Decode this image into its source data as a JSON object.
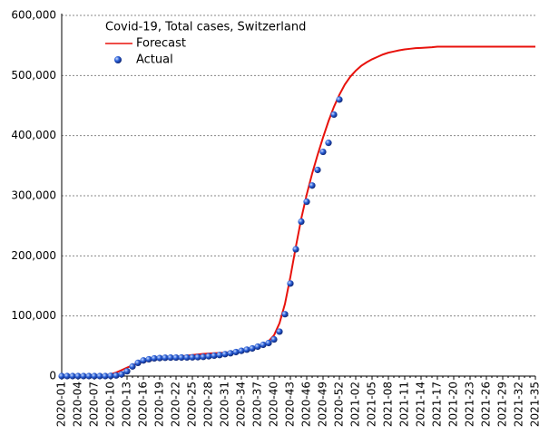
{
  "chart_data": {
    "type": "line",
    "title": "Covid-19, Total cases, Switzerland",
    "categories": [
      "2020-01",
      null,
      null,
      "2020-04",
      null,
      null,
      "2020-07",
      null,
      null,
      "2020-10",
      null,
      null,
      "2020-13",
      null,
      null,
      "2020-16",
      null,
      null,
      "2020-19",
      null,
      null,
      "2020-22",
      null,
      null,
      "2020-25",
      null,
      null,
      "2020-28",
      null,
      null,
      "2020-31",
      null,
      null,
      "2020-34",
      null,
      null,
      "2020-37",
      null,
      null,
      "2020-40",
      null,
      null,
      "2020-43",
      null,
      null,
      "2020-46",
      null,
      null,
      "2020-49",
      null,
      null,
      "2020-52",
      null,
      null,
      "2021-02",
      null,
      null,
      "2021-05",
      null,
      null,
      "2021-08",
      null,
      null,
      "2021-11",
      null,
      null,
      "2021-14",
      null,
      null,
      "2021-17",
      null,
      null,
      "2021-20",
      null,
      null,
      "2021-23",
      null,
      null,
      "2021-26",
      null,
      null,
      "2021-29",
      null,
      null,
      "2021-32",
      null,
      null,
      "2021-35"
    ],
    "series": [
      {
        "name": "Forecast",
        "color": "#e8120c",
        "style": "line",
        "values": [
          0,
          0,
          0,
          0,
          0,
          0,
          0,
          0,
          1000,
          3000,
          6000,
          10000,
          14000,
          18000,
          21000,
          24000,
          26000,
          27500,
          29000,
          30000,
          31000,
          32000,
          33000,
          34000,
          35000,
          36000,
          37000,
          37500,
          38000,
          38500,
          39000,
          40000,
          41000,
          42000,
          43500,
          45000,
          48000,
          52000,
          58000,
          68000,
          88000,
          120000,
          165000,
          215000,
          262000,
          302000,
          337000,
          368000,
          397000,
          424000,
          448000,
          468000,
          485000,
          498000,
          508000,
          516000,
          522000,
          527000,
          531000,
          535000,
          538000,
          540000,
          542000,
          543500,
          544500,
          545500,
          546000,
          546500,
          547000,
          548000,
          548000,
          548000,
          548000,
          548000,
          548000,
          548000,
          548000,
          548000,
          548000,
          548000,
          548000,
          548000,
          548000,
          548000,
          548000,
          548000,
          548000,
          548000
        ]
      },
      {
        "name": "Actual",
        "color": "#2050c8",
        "style": "marker",
        "values": [
          0,
          0,
          0,
          0,
          0,
          0,
          0,
          0,
          0,
          500,
          1000,
          3000,
          8000,
          16000,
          22000,
          26000,
          28000,
          29500,
          30000,
          30500,
          30700,
          30800,
          30900,
          31000,
          31200,
          31500,
          32000,
          33000,
          34000,
          35000,
          36500,
          38000,
          40000,
          42000,
          44000,
          46000,
          49000,
          52000,
          55000,
          61000,
          74000,
          103000,
          154000,
          211000,
          257000,
          290000,
          317000,
          343000,
          373000,
          388000,
          435000,
          460000,
          null,
          null,
          null,
          null,
          null,
          null,
          null,
          null,
          null,
          null,
          null,
          null,
          null,
          null,
          null,
          null,
          null,
          null,
          null,
          null,
          null,
          null,
          null,
          null,
          null,
          null,
          null,
          null,
          null,
          null,
          null,
          null,
          null,
          null,
          null,
          null
        ]
      }
    ],
    "ylim": [
      0,
      600000
    ],
    "yticks": [
      0,
      {
        "value": 100000,
        "label": "100,000"
      },
      {
        "value": 200000,
        "label": "200,000"
      },
      {
        "value": 300000,
        "label": "300,000"
      },
      {
        "value": 400000,
        "label": "400,000"
      },
      {
        "value": 500000,
        "label": "500,000"
      },
      {
        "value": 600000,
        "label": "600,000"
      }
    ],
    "grid": true
  }
}
